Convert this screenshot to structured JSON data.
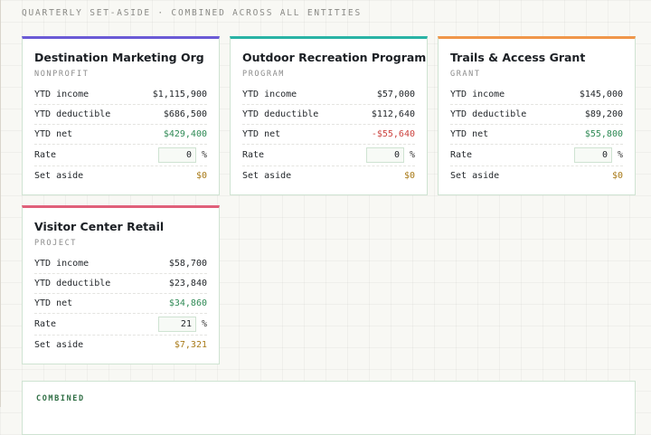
{
  "heading": "QUARTERLY SET-ASIDE · COMBINED ACROSS ALL ENTITIES",
  "labels": {
    "income": "YTD income",
    "deductible": "YTD deductible",
    "net": "YTD net",
    "rate": "Rate",
    "aside": "Set aside",
    "pct": "%"
  },
  "entities": [
    {
      "name": "Destination Marketing Org",
      "kind": "NONPROFIT",
      "accent": "#6b5bd6",
      "income": "$1,115,900",
      "deductible": "$686,500",
      "net": "$429,400",
      "net_sign": "positive",
      "rate": "0",
      "aside": "$0"
    },
    {
      "name": "Outdoor Recreation Program",
      "kind": "PROGRAM",
      "accent": "#2ab3a5",
      "income": "$57,000",
      "deductible": "$112,640",
      "net": "-$55,640",
      "net_sign": "negative",
      "rate": "0",
      "aside": "$0"
    },
    {
      "name": "Trails & Access Grant",
      "kind": "GRANT",
      "accent": "#f0964a",
      "income": "$145,000",
      "deductible": "$89,200",
      "net": "$55,800",
      "net_sign": "positive",
      "rate": "0",
      "aside": "$0"
    },
    {
      "name": "Visitor Center Retail",
      "kind": "PROJECT",
      "accent": "#e0607a",
      "income": "$58,700",
      "deductible": "$23,840",
      "net": "$34,860",
      "net_sign": "positive",
      "rate": "21",
      "aside": "$7,321"
    }
  ],
  "combined": {
    "title": "COMBINED"
  },
  "colors": {
    "positive": "#2f8a55",
    "negative": "#cc4440",
    "aside": "#a87a18",
    "card_border": "#cfe3d2"
  }
}
